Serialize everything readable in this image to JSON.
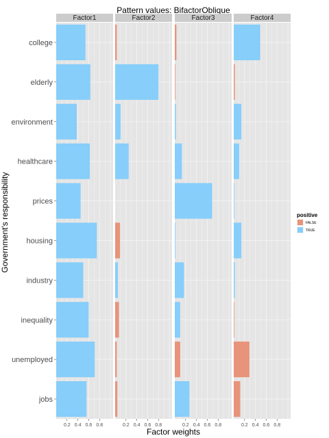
{
  "chart_data": {
    "type": "bar",
    "orientation": "horizontal",
    "title": "Pattern values:  BifactorOblique",
    "xlabel": "Factor weights",
    "ylabel": "Government's responsibility",
    "xlim": [
      0,
      1.05
    ],
    "xticks": [
      0.2,
      0.4,
      0.6,
      0.8
    ],
    "xtick_labels": [
      "0.2",
      "0.4",
      "0.6",
      "0.8"
    ],
    "grid": true,
    "categories": [
      "college",
      "elderly",
      "environment",
      "healthcare",
      "prices",
      "housing",
      "industry",
      "inequality",
      "unemployed",
      "jobs"
    ],
    "panels": [
      {
        "name": "Factor1",
        "values": [
          0.54,
          0.63,
          0.38,
          0.62,
          0.45,
          0.75,
          0.5,
          0.6,
          0.71,
          0.56
        ],
        "positive": [
          true,
          true,
          true,
          true,
          true,
          true,
          true,
          true,
          true,
          true
        ]
      },
      {
        "name": "Factor2",
        "values": [
          0.03,
          0.8,
          0.1,
          0.25,
          0.0,
          0.09,
          0.05,
          0.07,
          0.03,
          0.04
        ],
        "positive": [
          false,
          true,
          true,
          true,
          true,
          false,
          true,
          false,
          false,
          false
        ]
      },
      {
        "name": "Factor3",
        "values": [
          0.03,
          0.01,
          0.02,
          0.13,
          0.69,
          0.01,
          0.17,
          0.1,
          0.1,
          0.27
        ],
        "positive": [
          false,
          false,
          true,
          true,
          true,
          true,
          true,
          true,
          false,
          true
        ]
      },
      {
        "name": "Factor4",
        "values": [
          0.49,
          0.02,
          0.14,
          0.1,
          0.01,
          0.14,
          0.02,
          0.01,
          0.29,
          0.12
        ],
        "positive": [
          true,
          false,
          true,
          true,
          true,
          true,
          true,
          false,
          false,
          false
        ]
      }
    ],
    "legend": {
      "title": "positive",
      "placement": "right",
      "entries": [
        {
          "label": "FALSE",
          "color": "#E8937B"
        },
        {
          "label": "TRUE",
          "color": "#87CEFA"
        }
      ]
    },
    "colors": {
      "FALSE": "#E8937B",
      "TRUE": "#87CEFA",
      "panel_bg": "#E5E5E5",
      "strip_bg": "#CCCCCC",
      "grid": "#F2F2F2"
    }
  }
}
